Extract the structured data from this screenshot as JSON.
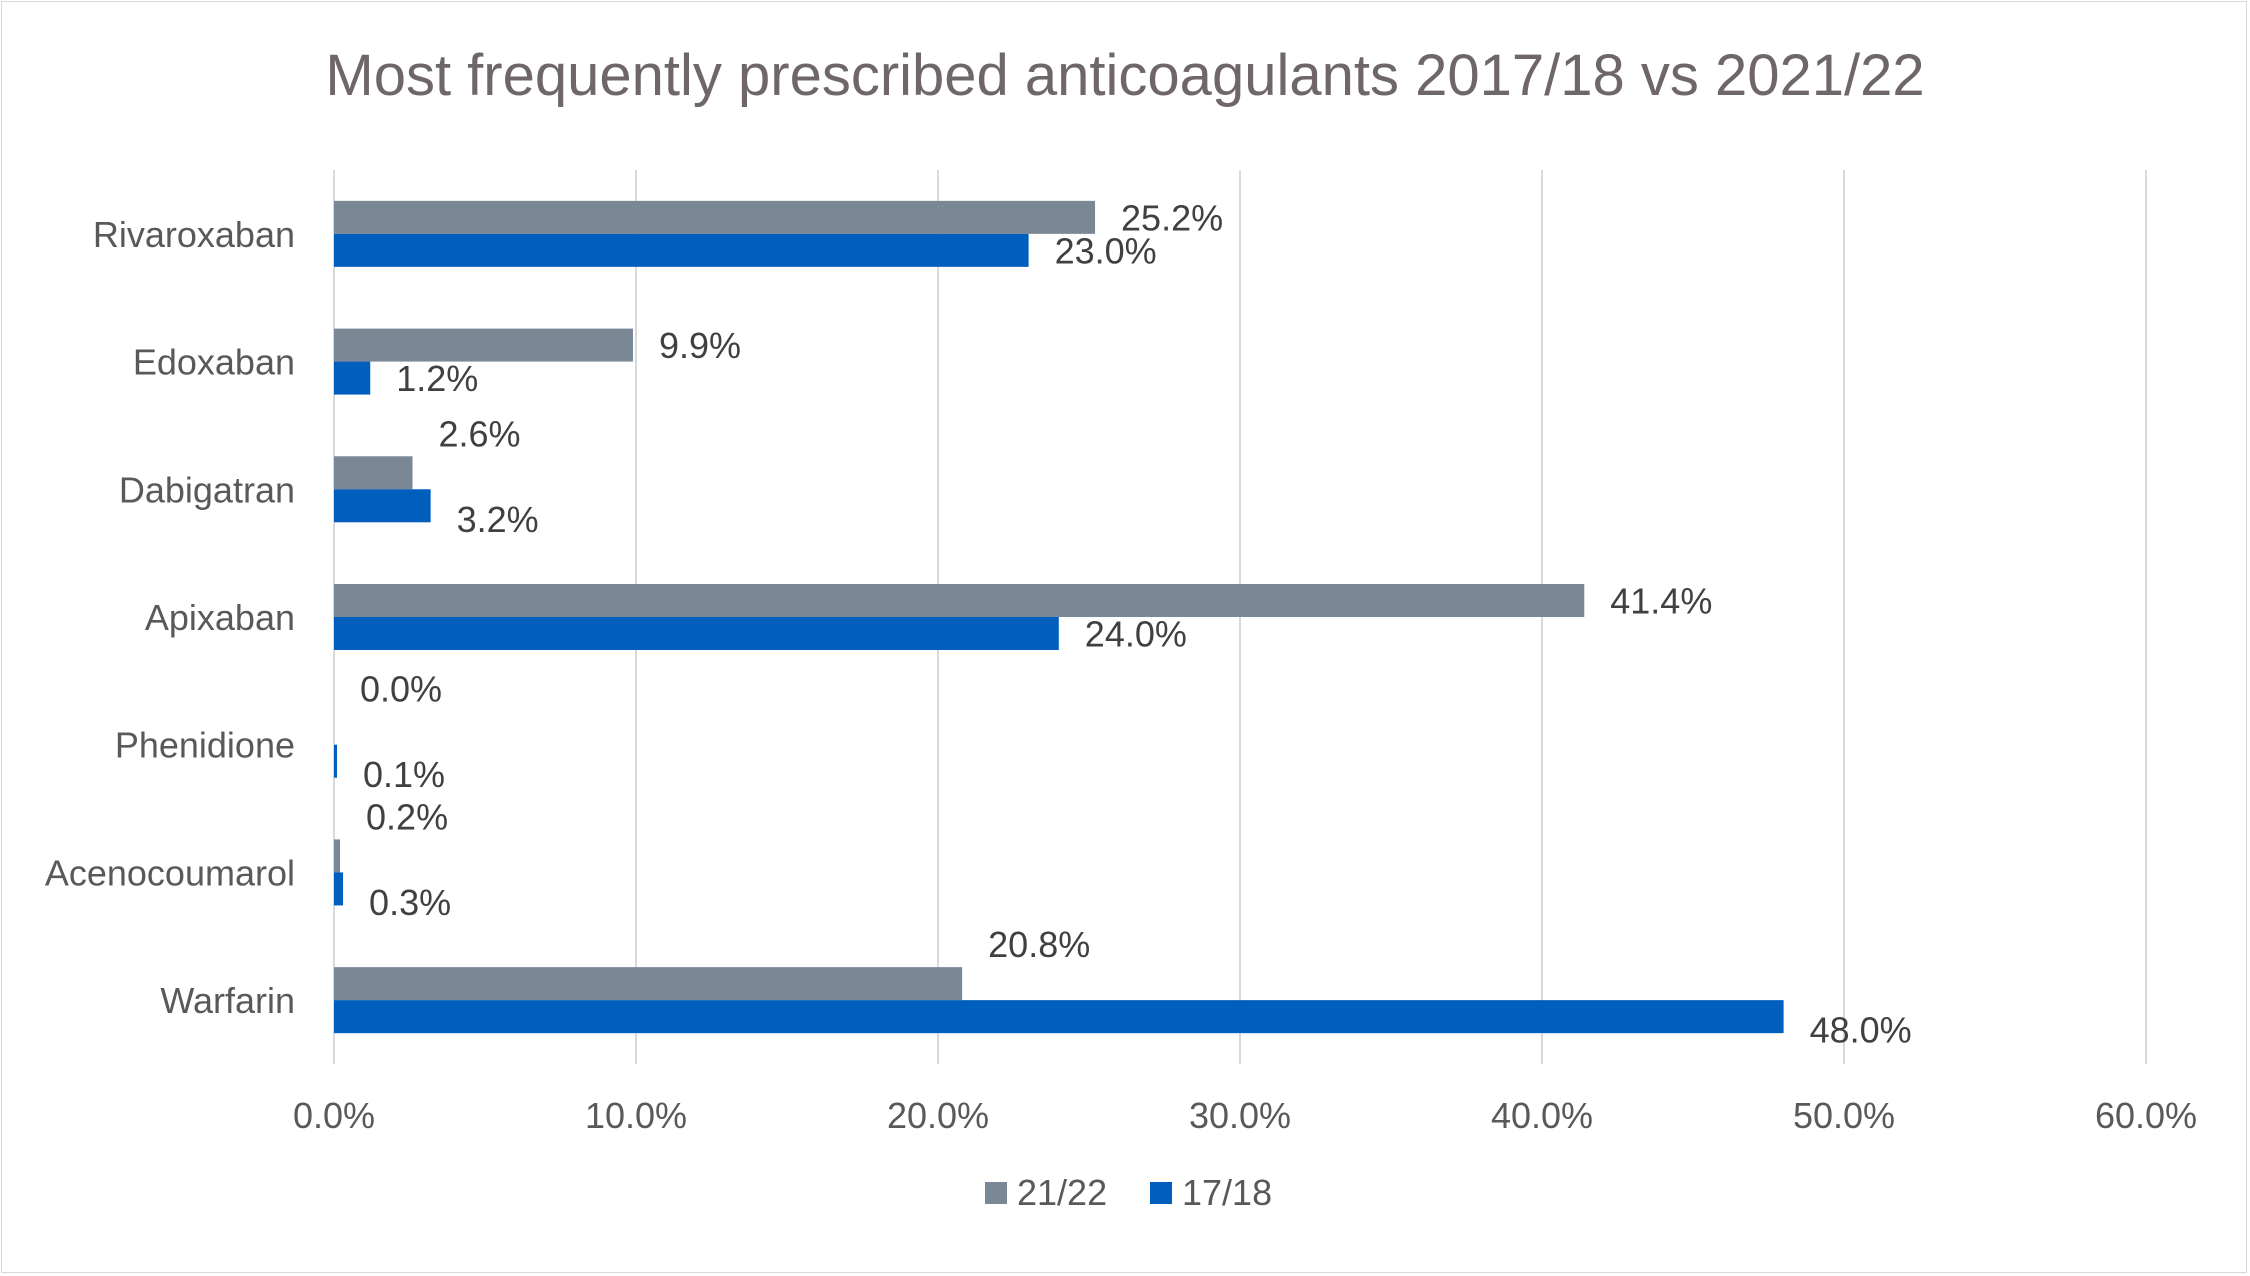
{
  "chart_data": {
    "type": "bar",
    "orientation": "horizontal",
    "title": "Most frequently prescribed anticoagulants 2017/18 vs 2021/22",
    "xlabel": "",
    "ylabel": "",
    "xlim": [
      0,
      60
    ],
    "x_ticks": [
      "0.0%",
      "10.0%",
      "20.0%",
      "30.0%",
      "40.0%",
      "50.0%",
      "60.0%"
    ],
    "grid": "vertical",
    "legend_position": "bottom",
    "categories": [
      "Rivaroxaban",
      "Edoxaban",
      "Dabigatran",
      "Apixaban",
      "Phenidione",
      "Acenocoumarol",
      "Warfarin"
    ],
    "series": [
      {
        "name": "21/22",
        "color": "#7a8794",
        "values": [
          25.2,
          9.9,
          2.6,
          41.4,
          0.0,
          0.2,
          20.8
        ],
        "labels": [
          "25.2%",
          "9.9%",
          "2.6%",
          "41.4%",
          "0.0%",
          "0.2%",
          "20.8%"
        ]
      },
      {
        "name": "17/18",
        "color": "#005ebd",
        "values": [
          23.0,
          1.2,
          3.2,
          24.0,
          0.1,
          0.3,
          48.0
        ],
        "labels": [
          "23.0%",
          "1.2%",
          "3.2%",
          "24.0%",
          "0.1%",
          "0.3%",
          "48.0%"
        ]
      }
    ]
  }
}
